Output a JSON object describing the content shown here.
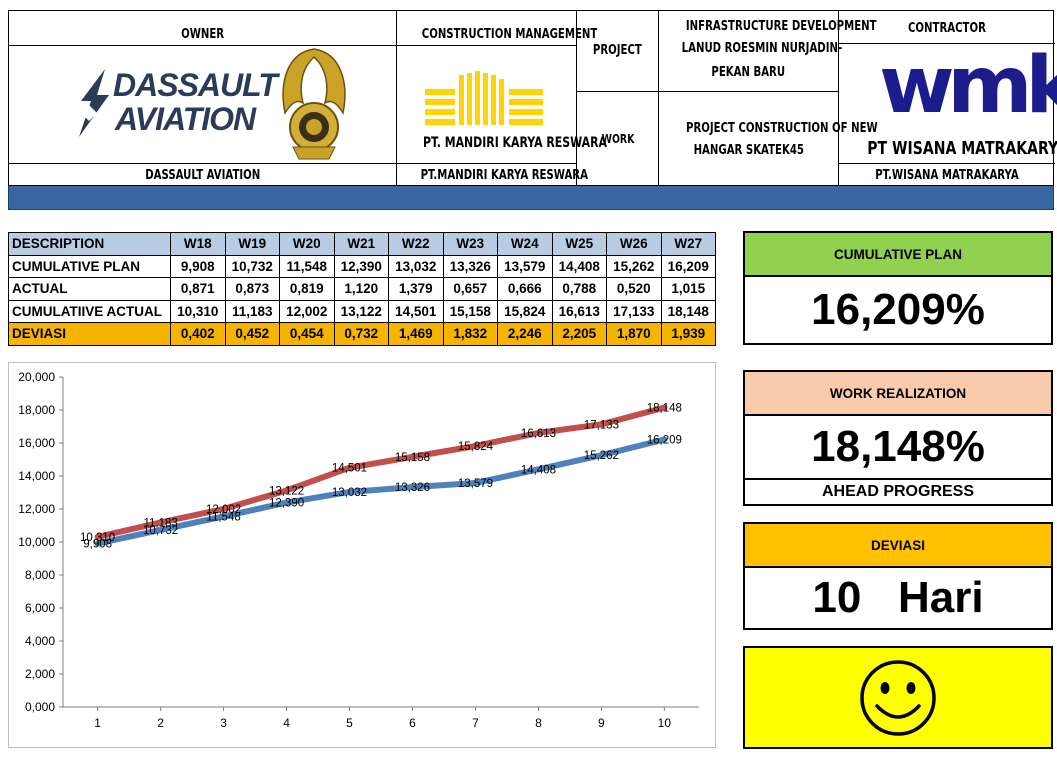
{
  "header": {
    "owner_label": "OWNER",
    "owner_name": "DASSAULT AVIATION",
    "owner_logo_line1": "DASSAULT",
    "owner_logo_line2": "AVIATION",
    "cm_label": "CONSTRUCTION MANAGEMENT",
    "cm_logo_text": "PT. MANDIRI KARYA RESWARA",
    "cm_name": "PT.MANDIRI KARYA RESWARA",
    "project_label": "PROJECT",
    "project_value_line1": "INFRASTRUCTURE DEVELOPMENT",
    "project_value_line2": "LANUD ROESMIN NURJADIN-",
    "project_value_line3": "PEKAN BARU",
    "work_label": "WORK",
    "work_value_line1": "PROJECT CONSTRUCTION OF NEW",
    "work_value_line2": "HANGAR SKATEK45",
    "contractor_label": "CONTRACTOR",
    "contractor_logo": "wmk",
    "contractor_logo_text": "PT WISANA MATRAKARYA",
    "contractor_name": "PT.WISANA MATRAKARYA"
  },
  "table": {
    "desc_header": "DESCRIPTION",
    "weeks": [
      "W18",
      "W19",
      "W20",
      "W21",
      "W22",
      "W23",
      "W24",
      "W25",
      "W26",
      "W27"
    ],
    "rows": [
      {
        "label": "CUMULATIVE PLAN",
        "values": [
          "9,908",
          "10,732",
          "11,548",
          "12,390",
          "13,032",
          "13,326",
          "13,579",
          "14,408",
          "15,262",
          "16,209"
        ]
      },
      {
        "label": "ACTUAL",
        "values": [
          "0,871",
          "0,873",
          "0,819",
          "1,120",
          "1,379",
          "0,657",
          "0,666",
          "0,788",
          "0,520",
          "1,015"
        ]
      },
      {
        "label": "CUMULATIIVE ACTUAL",
        "values": [
          "10,310",
          "11,183",
          "12,002",
          "13,122",
          "14,501",
          "15,158",
          "15,824",
          "16,613",
          "17,133",
          "18,148"
        ]
      }
    ],
    "deviation": {
      "label": "DEVIASI",
      "values": [
        "0,402",
        "0,452",
        "0,454",
        "0,732",
        "1,469",
        "1,832",
        "2,246",
        "2,205",
        "1,870",
        "1,939"
      ]
    }
  },
  "chart_data": {
    "type": "line",
    "x": [
      1,
      2,
      3,
      4,
      5,
      6,
      7,
      8,
      9,
      10
    ],
    "y_ticks": [
      "0,000",
      "2,000",
      "4,000",
      "6,000",
      "8,000",
      "10,000",
      "12,000",
      "14,000",
      "16,000",
      "18,000",
      "20,000"
    ],
    "ylim": [
      0,
      20
    ],
    "grid": false,
    "series": [
      {
        "values": [
          9.908,
          10.732,
          11.548,
          12.39,
          13.032,
          13.326,
          13.579,
          14.408,
          15.262,
          16.209
        ],
        "labels": [
          "9,908",
          "10,732",
          "11,548",
          "12,390",
          "13,032",
          "13,326",
          "13,579",
          "14,408",
          "15,262",
          "16,209"
        ],
        "color": "#4f81bd"
      },
      {
        "values": [
          10.31,
          11.183,
          12.002,
          13.122,
          14.501,
          15.158,
          15.824,
          16.613,
          17.133,
          18.148
        ],
        "labels": [
          "10,310",
          "11,183",
          "12,002",
          "13,122",
          "14,501",
          "15,158",
          "15,824",
          "16,613",
          "17,133",
          "18,148"
        ],
        "color": "#c0504d"
      }
    ]
  },
  "panels": {
    "plan": {
      "label": "CUMULATIVE PLAN",
      "value": "16,209%",
      "color": "#92d050"
    },
    "realization": {
      "label": "WORK REALIZATION",
      "value": "18,148%",
      "status": "AHEAD PROGRESS",
      "color": "#f8cbad"
    },
    "deviation": {
      "label": "DEVIASI",
      "value": "10   Hari",
      "color": "#ffc000"
    },
    "mood": {
      "icon": "smiley-face-icon",
      "color": "#ffff00"
    }
  }
}
